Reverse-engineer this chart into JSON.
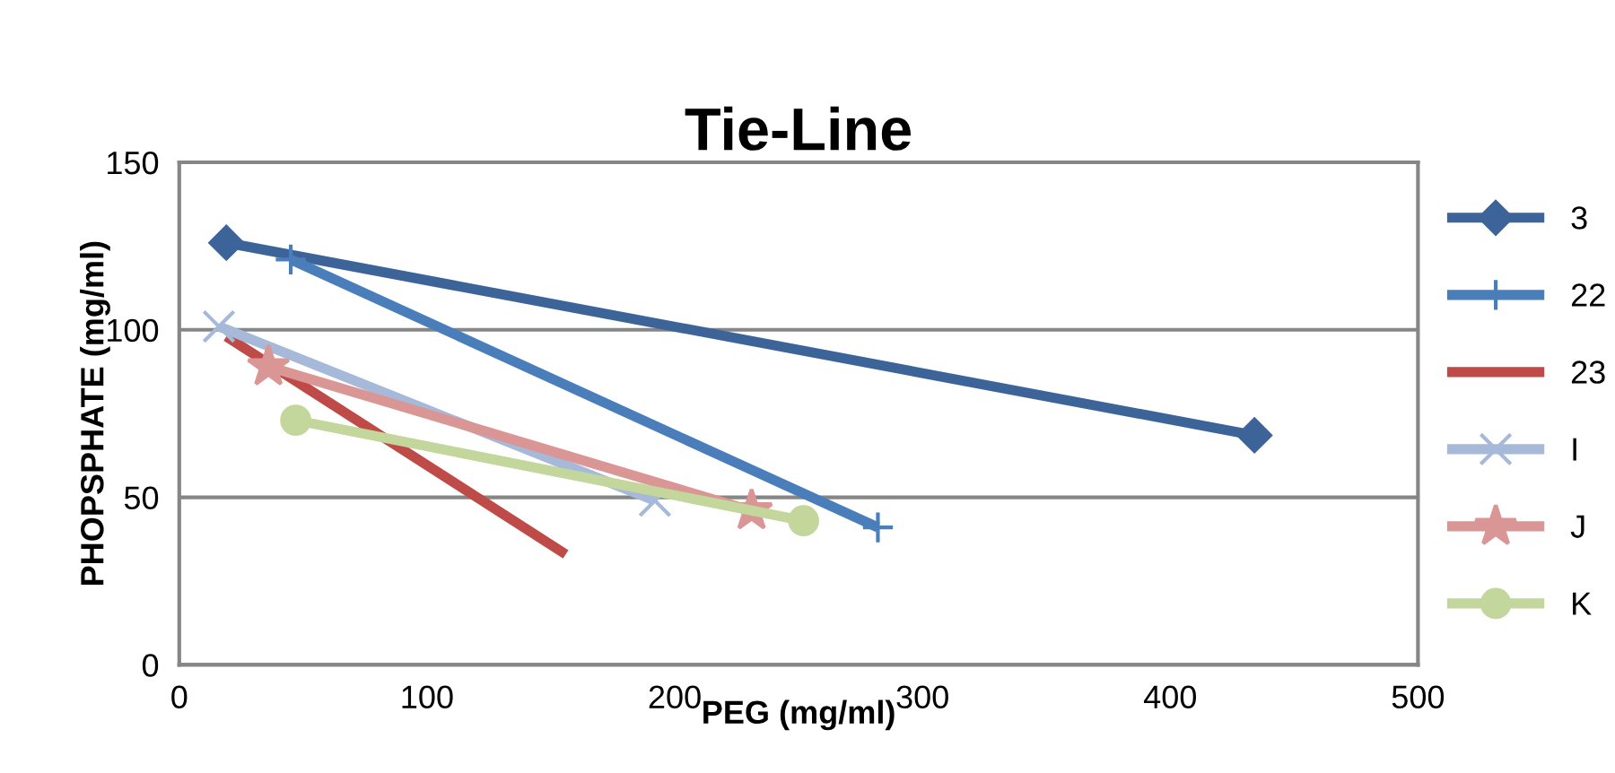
{
  "chart_data": {
    "type": "line",
    "title": "Tie-Line",
    "xlabel": "PEG (mg/ml)",
    "ylabel": "PHOPSPHATE (mg/ml)",
    "xlim": [
      0,
      500
    ],
    "xticks": [
      0,
      100,
      200,
      300,
      400,
      500
    ],
    "ylim": [
      0,
      150
    ],
    "yticks": [
      0,
      50,
      100,
      150
    ],
    "grid": "y",
    "legend": "right",
    "line_style": "solid",
    "series": [
      {
        "name": "3",
        "color": "#3c6499",
        "marker": "diamond",
        "x": [
          19,
          434
        ],
        "values": [
          126,
          68.5
        ]
      },
      {
        "name": "22",
        "color": "#4a7ebb",
        "marker": "plus",
        "x": [
          45,
          282
        ],
        "values": [
          121,
          41
        ]
      },
      {
        "name": "23",
        "color": "#be4b48",
        "marker": "none",
        "x": [
          19,
          156
        ],
        "values": [
          98,
          33
        ]
      },
      {
        "name": "I",
        "color": "#a7b9d9",
        "marker": "cross",
        "x": [
          16,
          192
        ],
        "values": [
          101,
          49
        ]
      },
      {
        "name": "J",
        "color": "#d99694",
        "marker": "star",
        "x": [
          36,
          231
        ],
        "values": [
          89,
          46
        ]
      },
      {
        "name": "K",
        "color": "#c3d69b",
        "marker": "circle",
        "x": [
          47,
          252
        ],
        "values": [
          73,
          43
        ]
      }
    ]
  }
}
